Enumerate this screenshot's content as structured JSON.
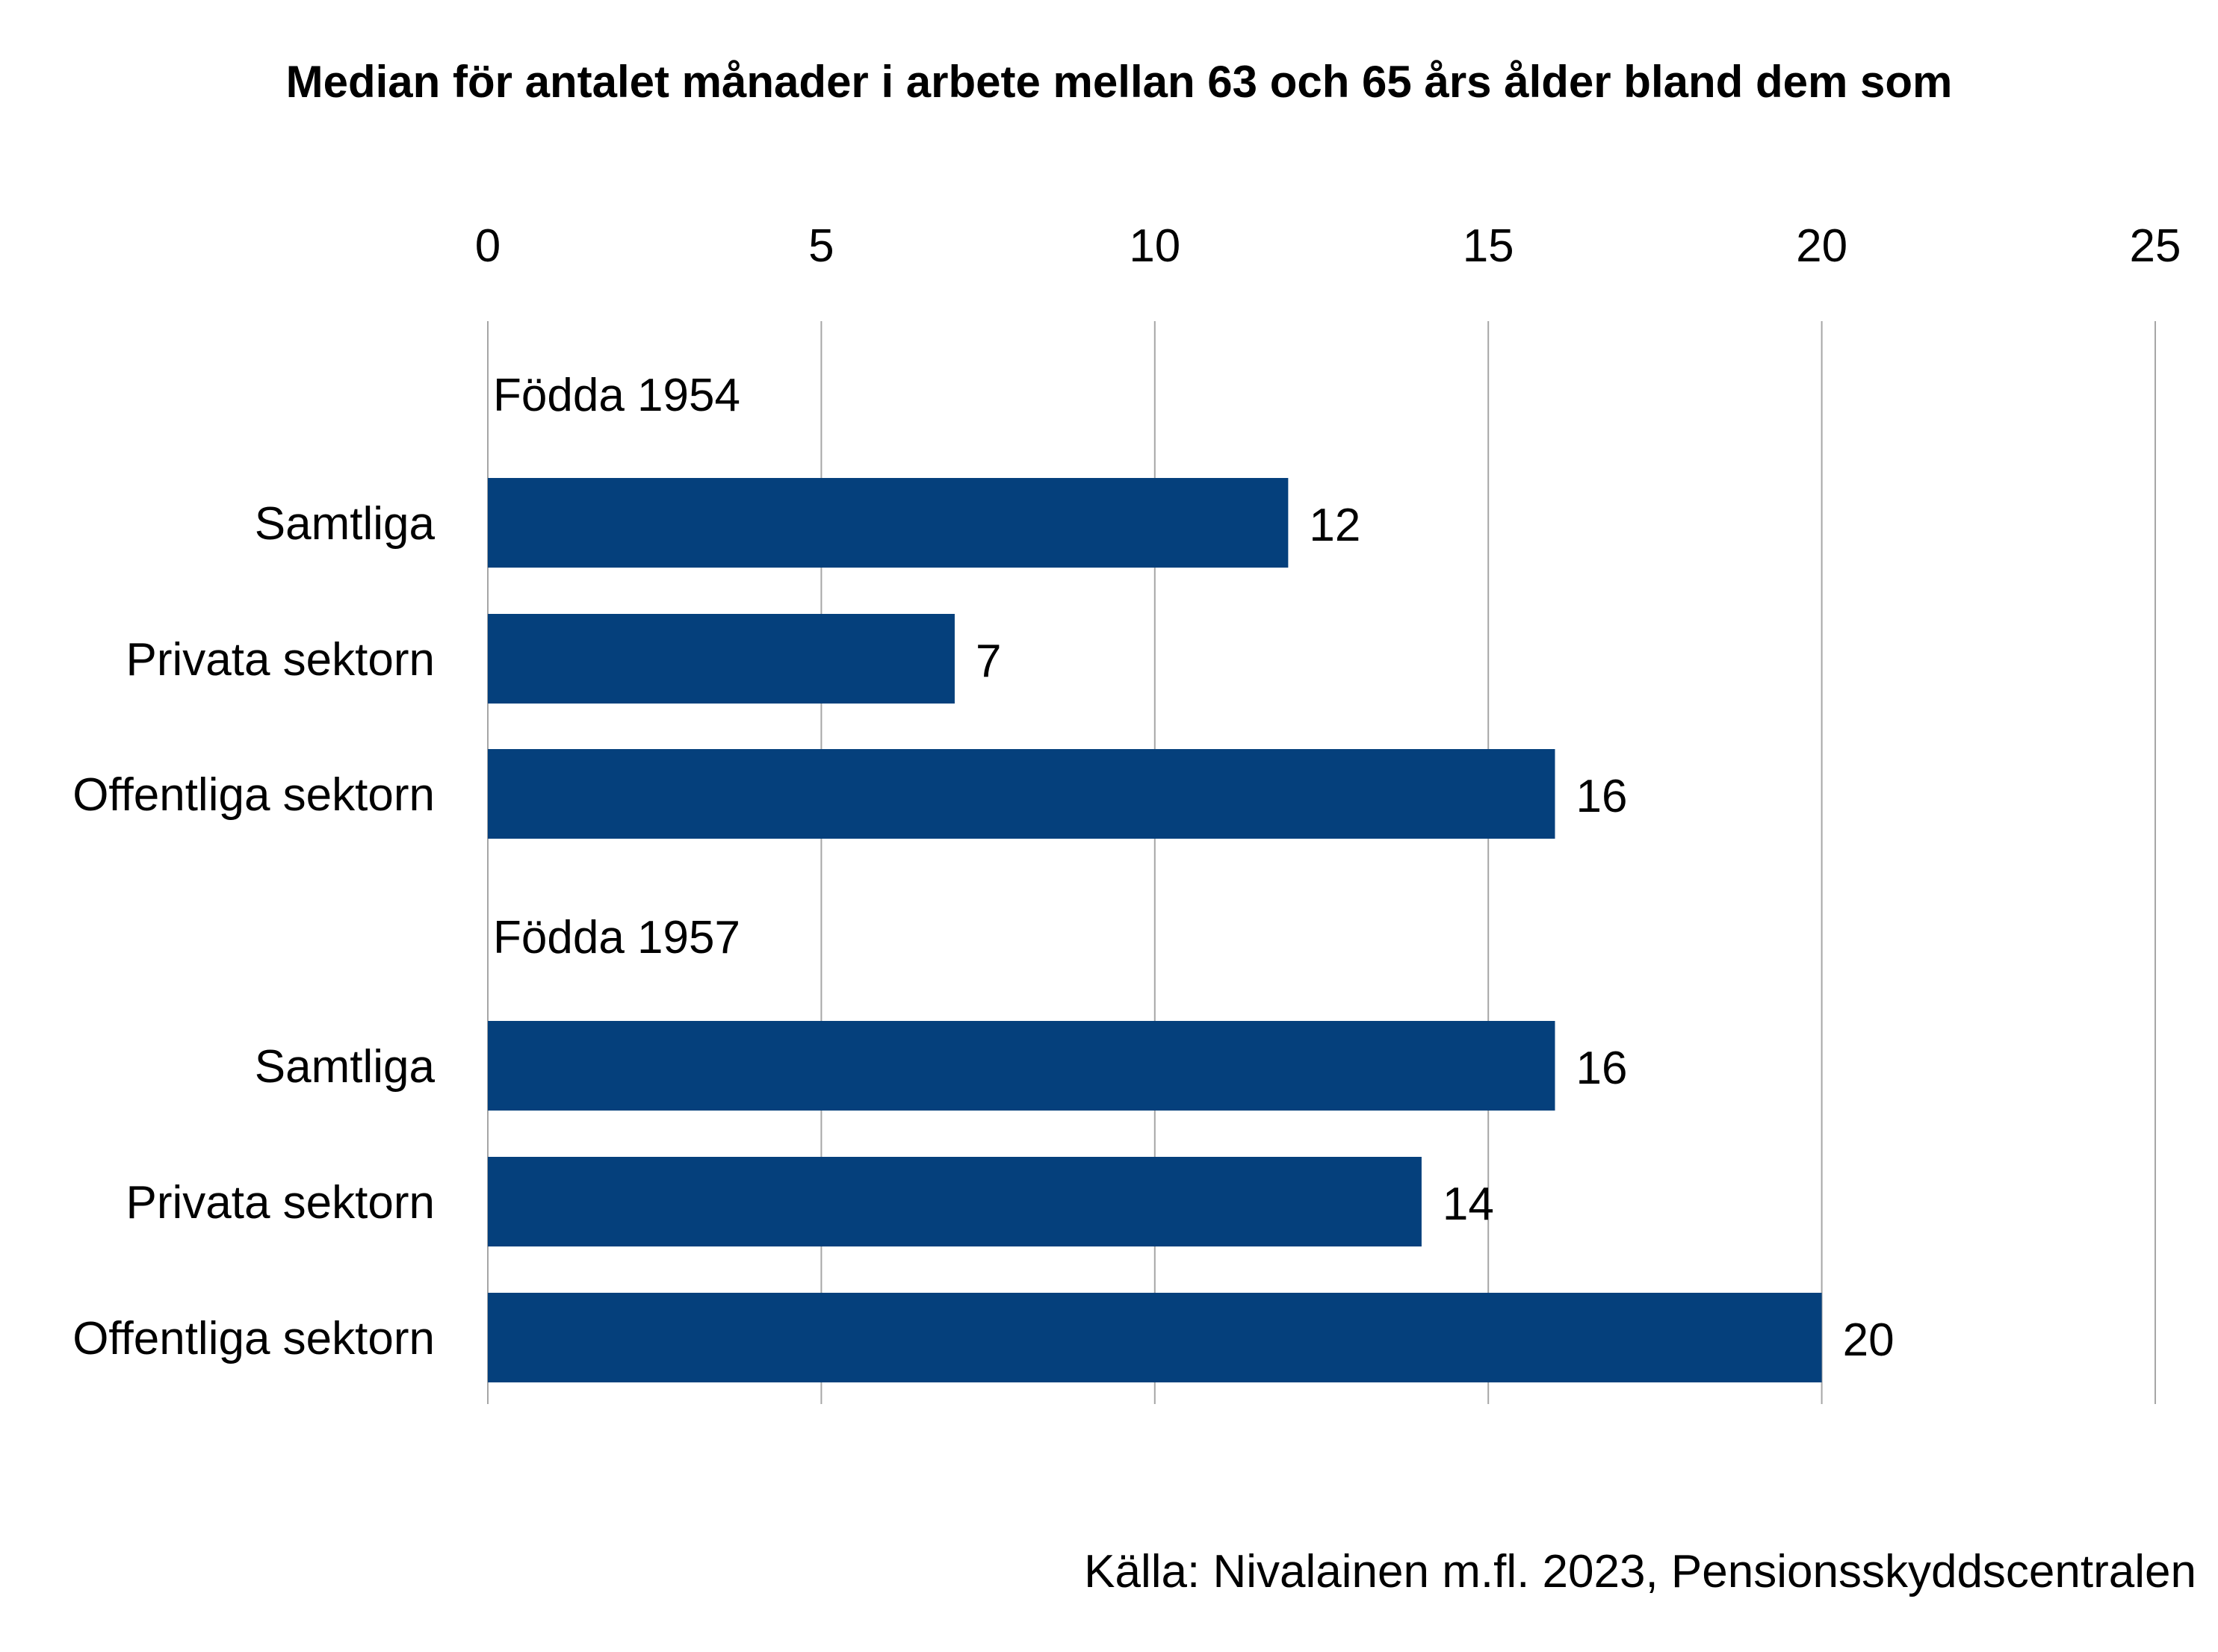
{
  "chart_data": {
    "type": "bar",
    "orientation": "horizontal",
    "title": "Median för antalet månader i arbete mellan 63 och 65 års ålder bland dem som",
    "xlim": [
      0,
      25
    ],
    "x_ticks": [
      "0",
      "5",
      "10",
      "15",
      "20",
      "25"
    ],
    "x_tick_values": [
      0,
      5,
      10,
      15,
      20,
      25
    ],
    "x_axis_position": "top",
    "grid": true,
    "bar_color": "#05407C",
    "groups": [
      {
        "label": "Födda 1954",
        "categories": [
          "Samtliga",
          "Privata sektorn",
          "Offentliga sektorn"
        ],
        "values": [
          12,
          7,
          16
        ],
        "value_labels": [
          "12",
          "7",
          "16"
        ]
      },
      {
        "label": "Födda 1957",
        "categories": [
          "Samtliga",
          "Privata sektorn",
          "Offentliga sektorn"
        ],
        "values": [
          16,
          14,
          20
        ],
        "value_labels": [
          "16",
          "14",
          "20"
        ]
      }
    ],
    "source": "Källa: Nivalainen m.fl. 2023, Pensionsskyddscentralen"
  }
}
